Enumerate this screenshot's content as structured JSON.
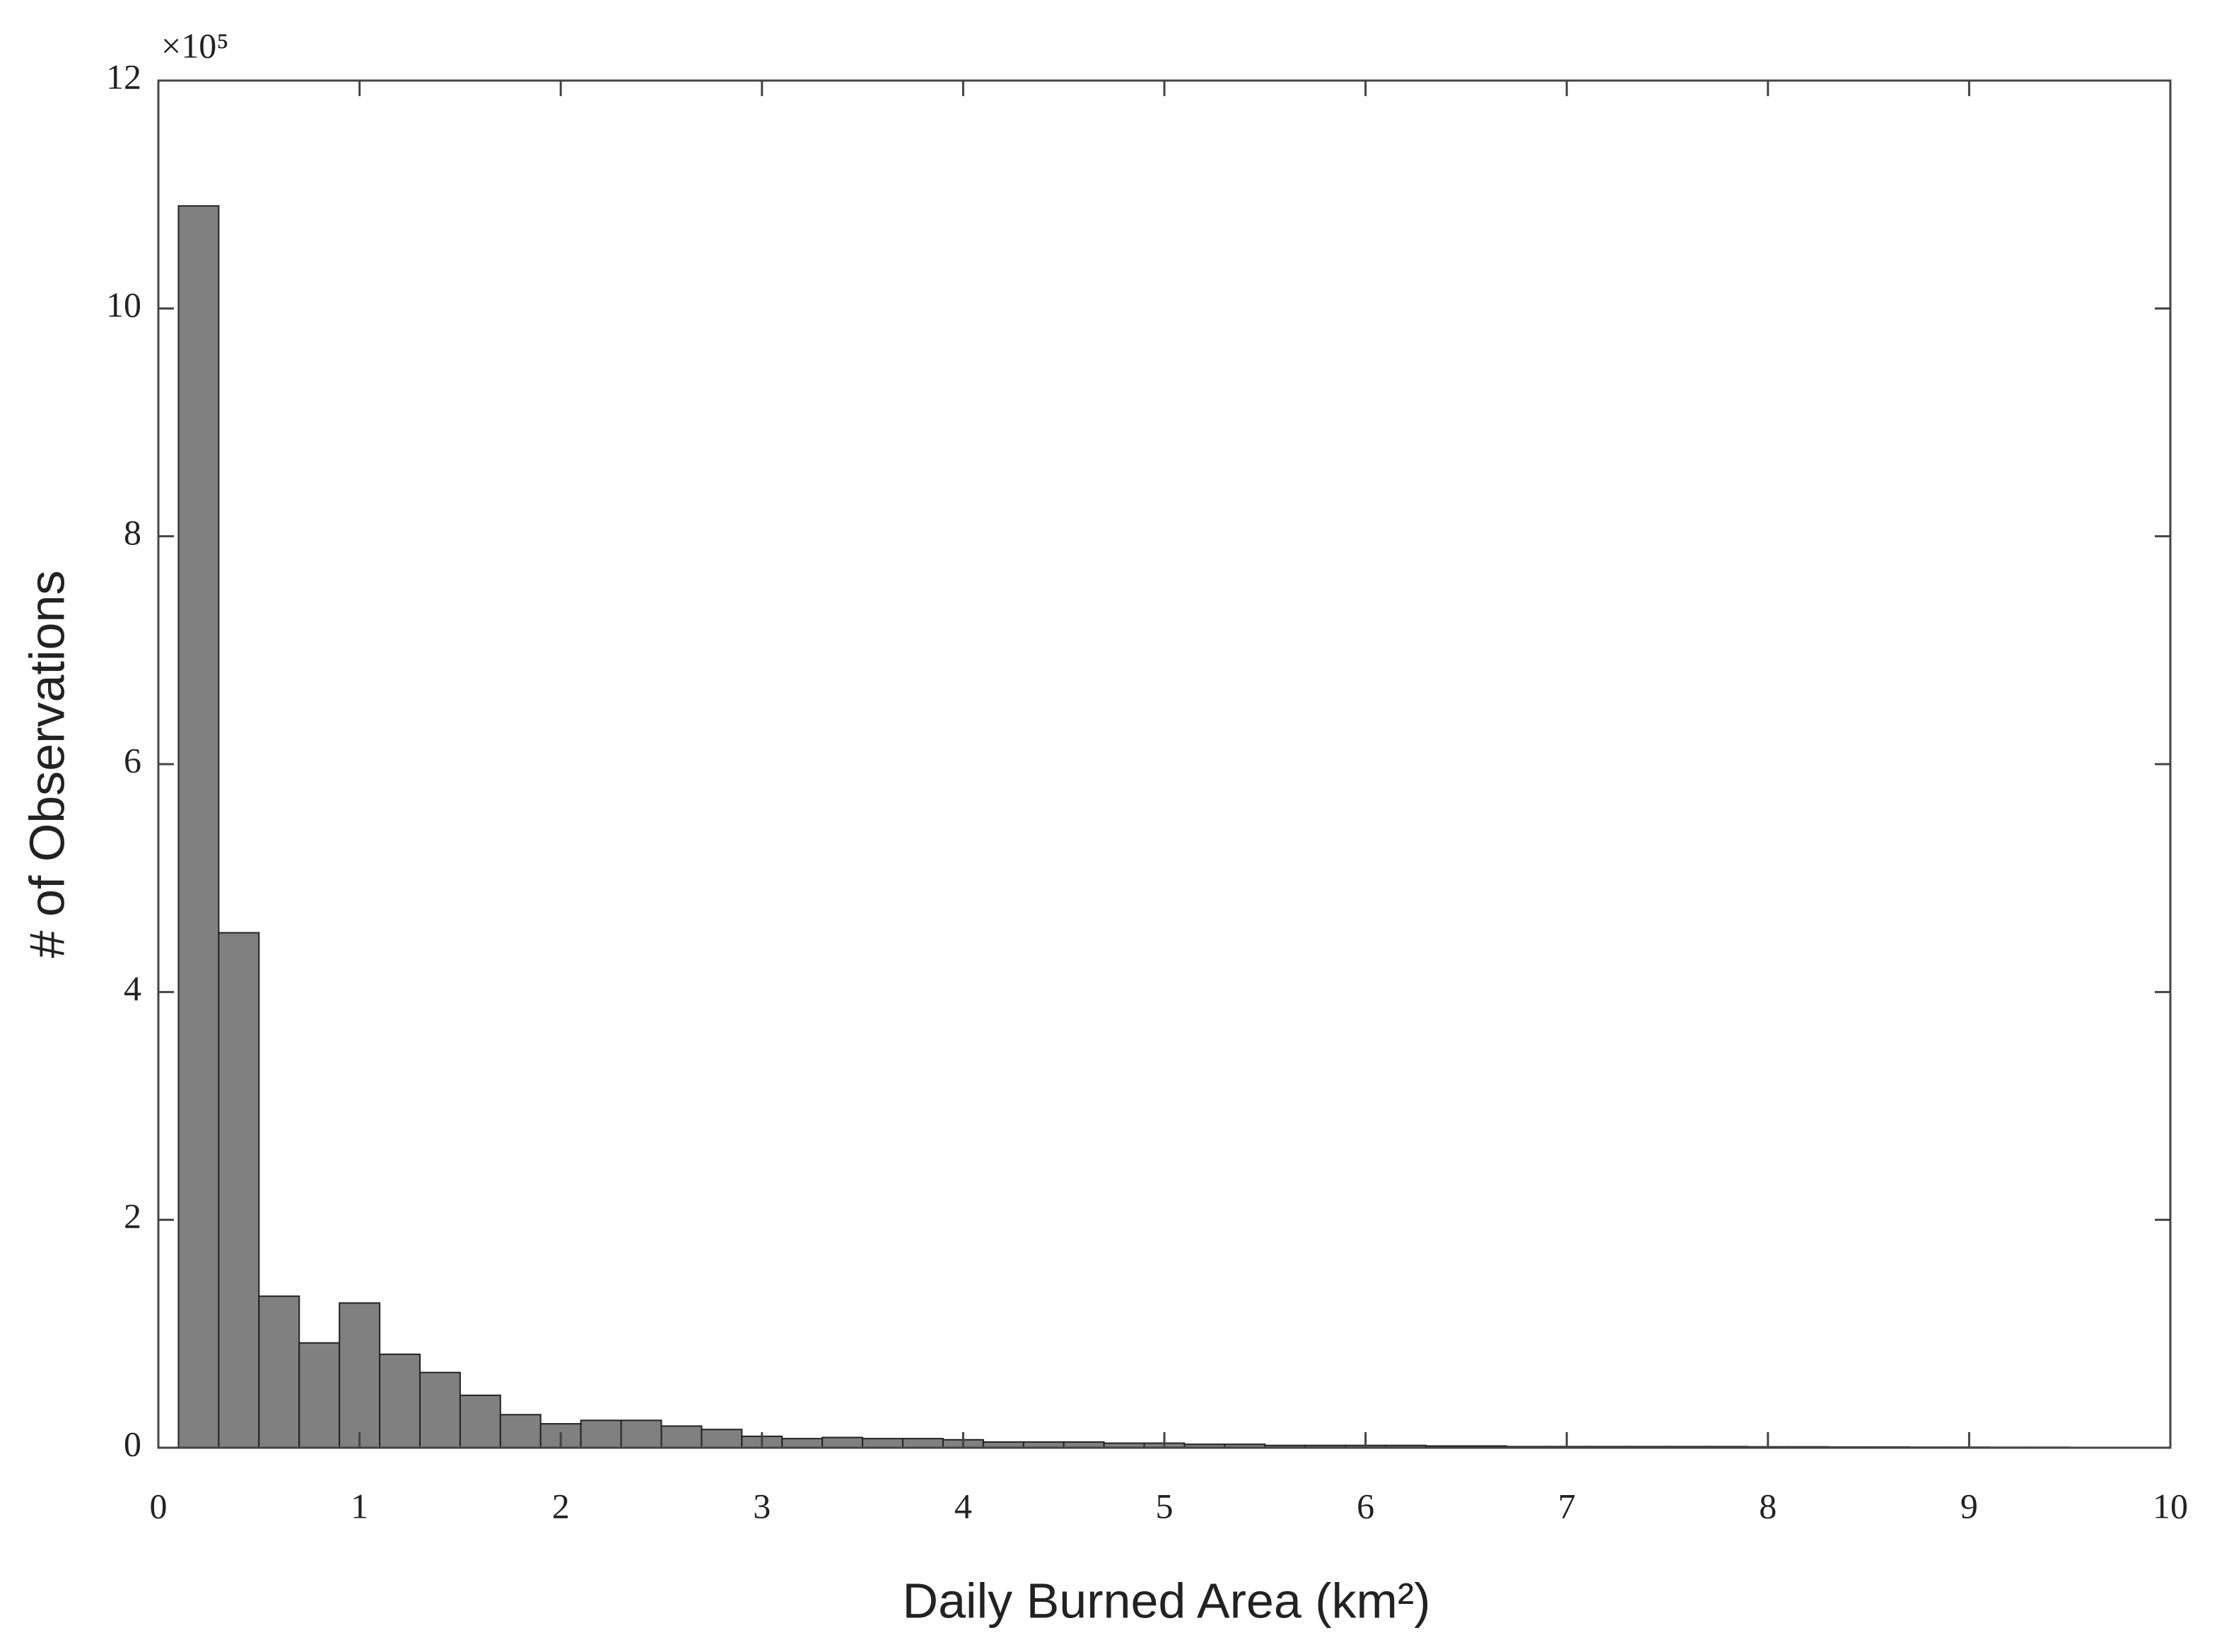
{
  "chart_data": {
    "type": "histogram",
    "xlabel": "Daily Burned Area (km²)",
    "ylabel": "# of Observations",
    "y_multiplier": "×10⁵",
    "bins": [
      0.1,
      0.3,
      0.5,
      0.7,
      0.9,
      1.1,
      1.3,
      1.5,
      1.7,
      1.9,
      2.1,
      2.3,
      2.5,
      2.7,
      2.9,
      3.1,
      3.3,
      3.5,
      3.7,
      3.9,
      4.1,
      4.3,
      4.5,
      4.7,
      4.9,
      5.1,
      5.3,
      5.5,
      5.7,
      5.9,
      6.1,
      6.3,
      6.5,
      6.7,
      6.9,
      7.1,
      7.3,
      7.5,
      7.7,
      7.9,
      8.1,
      8.3,
      8.5,
      8.7,
      8.9,
      9.1,
      9.3,
      9.5,
      9.7,
      9.9
    ],
    "values": [
      10.9,
      4.52,
      1.33,
      0.92,
      1.27,
      0.82,
      0.66,
      0.46,
      0.29,
      0.21,
      0.24,
      0.24,
      0.19,
      0.16,
      0.1,
      0.08,
      0.09,
      0.08,
      0.08,
      0.07,
      0.05,
      0.05,
      0.05,
      0.04,
      0.04,
      0.03,
      0.03,
      0.02,
      0.02,
      0.02,
      0.02,
      0.015,
      0.015,
      0.01,
      0.01,
      0.01,
      0.01,
      0.01,
      0.01,
      0.008,
      0.008,
      0.006,
      0.006,
      0.005,
      0.005,
      0.004,
      0.004,
      0.003,
      0.003
    ],
    "color": "#808080",
    "xlim": [
      0,
      10
    ],
    "xticks": [
      0,
      1,
      2,
      3,
      4,
      5,
      6,
      7,
      8,
      9,
      10
    ],
    "ylim": [
      0,
      12
    ],
    "yticks": [
      0,
      2,
      4,
      6,
      8,
      10,
      12
    ]
  }
}
